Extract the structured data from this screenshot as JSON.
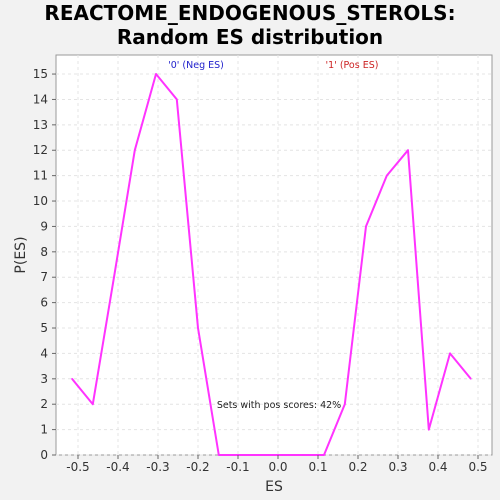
{
  "chart_data": {
    "type": "line",
    "title_line1": "REACTOME_ENDOGENOUS_STEROLS:",
    "title_line2": "Random ES distribution",
    "xlabel": "ES",
    "ylabel": "P(ES)",
    "xlim": [
      -0.555,
      0.535
    ],
    "ylim": [
      0,
      15.75
    ],
    "x_ticks": [
      "-0.5",
      "-0.4",
      "-0.3",
      "-0.2",
      "-0.1",
      "0.0",
      "0.1",
      "0.2",
      "0.3",
      "0.4",
      "0.5"
    ],
    "x_tick_values": [
      -0.5,
      -0.4,
      -0.3,
      -0.2,
      -0.1,
      0.0,
      0.1,
      0.2,
      0.3,
      0.4,
      0.5
    ],
    "y_ticks": [
      "0",
      "1",
      "2",
      "3",
      "4",
      "5",
      "6",
      "7",
      "8",
      "9",
      "10",
      "11",
      "12",
      "13",
      "14",
      "15"
    ],
    "y_tick_values": [
      0,
      1,
      2,
      3,
      4,
      5,
      6,
      7,
      8,
      9,
      10,
      11,
      12,
      13,
      14,
      15
    ],
    "grid": true,
    "series": [
      {
        "color": "#ff33ff",
        "x": [
          -0.515,
          -0.463,
          -0.41,
          -0.358,
          -0.305,
          -0.253,
          -0.2,
          -0.148,
          -0.095,
          -0.043,
          0.01,
          0.062,
          0.115,
          0.167,
          0.22,
          0.272,
          0.325,
          0.377,
          0.43,
          0.482
        ],
        "y": [
          3,
          2,
          7,
          12,
          15,
          14,
          5,
          0,
          0,
          0,
          0,
          0,
          0,
          2,
          9,
          11,
          12,
          1,
          4,
          3
        ]
      }
    ],
    "annotations": {
      "neg_label": "'0' (Neg ES)",
      "neg_color": "#2222cc",
      "pos_label": "'1' (Pos ES)",
      "pos_color": "#cc2222",
      "pos_scores_text": "Sets with pos scores: 42%"
    },
    "plot_background": "#ffffff",
    "grid_color": "#e4e4e4"
  }
}
